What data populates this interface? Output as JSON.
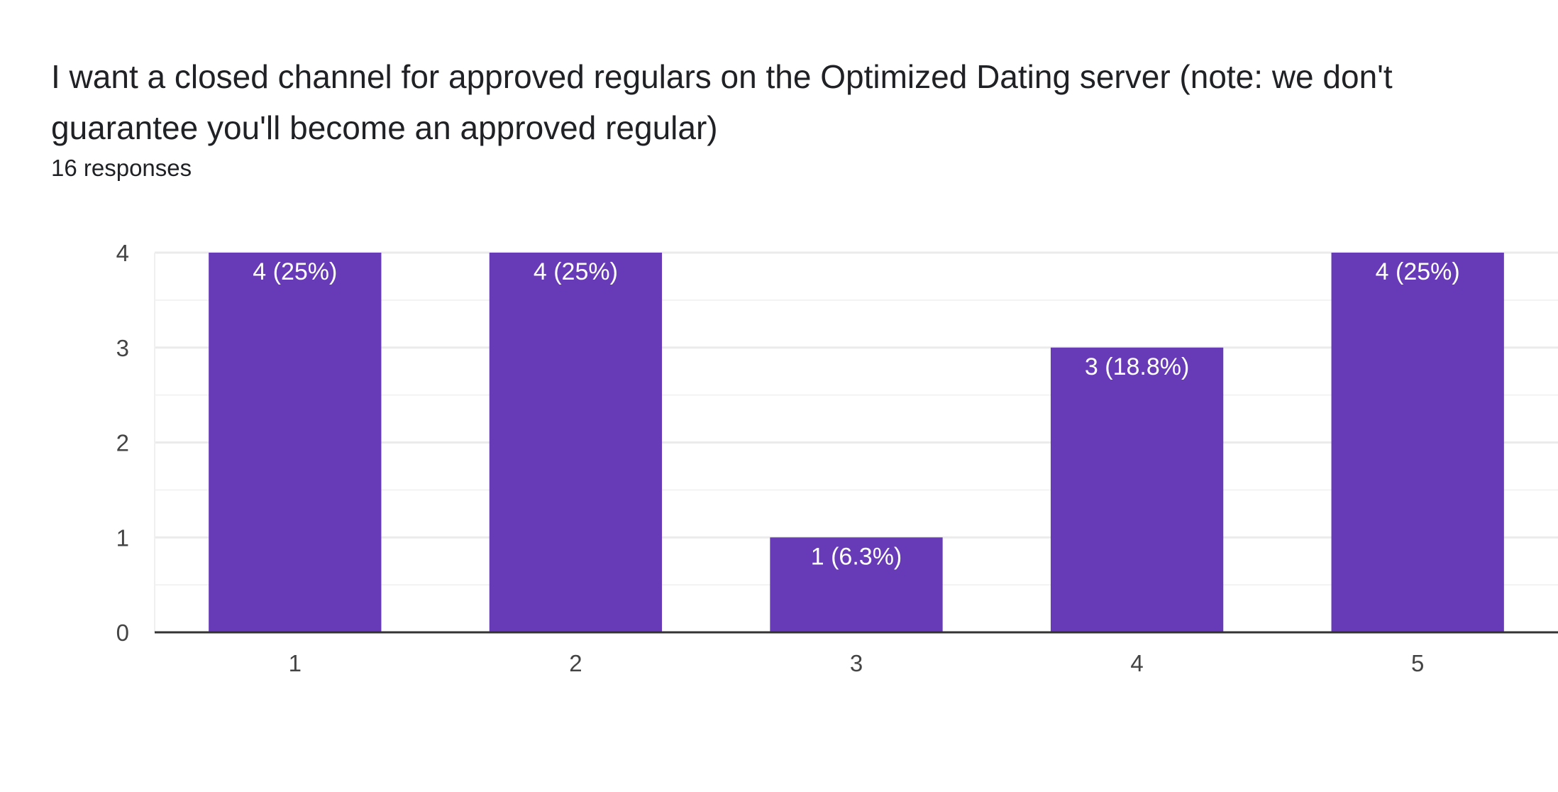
{
  "header": {
    "title": "I want a closed channel for approved regulars on the Optimized Dating server (note: we don't guarantee you'll become an approved regular)",
    "responses": "16 responses"
  },
  "colors": {
    "bar": "#673ab7",
    "grid": "#ebebeb",
    "axis": "#333333"
  },
  "chart_data": {
    "type": "bar",
    "categories": [
      "1",
      "2",
      "3",
      "4",
      "5"
    ],
    "values": [
      4,
      4,
      1,
      3,
      4
    ],
    "data_labels": [
      "4 (25%)",
      "4 (25%)",
      "1 (6.3%)",
      "3 (18.8%)",
      "4 (25%)"
    ],
    "ylim": [
      0,
      4
    ],
    "yticks": [
      "0",
      "1",
      "2",
      "3",
      "4"
    ],
    "grid": true,
    "title": "",
    "xlabel": "",
    "ylabel": ""
  }
}
